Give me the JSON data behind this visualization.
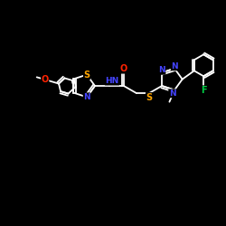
{
  "background_color": "#000000",
  "bond_color": "#ffffff",
  "atom_colors": {
    "O": "#ff2200",
    "S": "#ffa500",
    "N": "#4444ff",
    "F": "#00cc44",
    "C": "#ffffff",
    "H": "#ffffff"
  },
  "figsize": [
    2.5,
    2.5
  ],
  "dpi": 100,
  "xlim": [
    0,
    10
  ],
  "ylim": [
    0,
    10
  ]
}
